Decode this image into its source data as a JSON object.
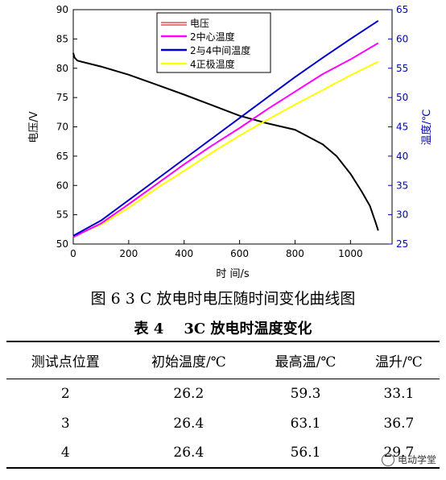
{
  "chart_data": {
    "type": "line",
    "xlabel": "时 间/s",
    "ylabel_left": "电压/V",
    "ylabel_right": "温度/℃",
    "xlim": [
      0,
      1150
    ],
    "ylim_left": [
      50,
      90
    ],
    "ylim_right": [
      25,
      65
    ],
    "xticks": [
      0,
      200,
      400,
      600,
      800,
      1000
    ],
    "yticks_left": [
      50,
      55,
      60,
      65,
      70,
      75,
      80,
      85,
      90
    ],
    "yticks_right": [
      25,
      30,
      35,
      40,
      45,
      50,
      55,
      60,
      65
    ],
    "grid": false,
    "legend_position": "top-center",
    "series": [
      {
        "name": "电压",
        "axis": "left",
        "color": "#000000",
        "legend_color": "#cc0000",
        "x": [
          0,
          5,
          15,
          40,
          100,
          200,
          300,
          400,
          500,
          600,
          700,
          800,
          900,
          950,
          1000,
          1040,
          1070,
          1090,
          1100
        ],
        "y": [
          82.6,
          81.8,
          81.3,
          81.0,
          80.3,
          78.9,
          77.2,
          75.5,
          73.7,
          71.9,
          70.6,
          69.5,
          67.0,
          65.0,
          62.0,
          59.0,
          56.5,
          53.8,
          52.3
        ]
      },
      {
        "name": "2中心温度",
        "axis": "right",
        "color": "#ff00ff",
        "x": [
          0,
          100,
          200,
          300,
          400,
          500,
          600,
          700,
          800,
          900,
          1000,
          1100
        ],
        "y": [
          26.2,
          28.5,
          31.8,
          35.2,
          38.6,
          41.8,
          44.8,
          48.0,
          51.0,
          54.0,
          56.5,
          59.3
        ]
      },
      {
        "name": "2与4中间温度",
        "axis": "right",
        "color": "#0000cc",
        "x": [
          0,
          100,
          200,
          300,
          400,
          500,
          600,
          700,
          800,
          900,
          1000,
          1100
        ],
        "y": [
          26.4,
          29.0,
          32.5,
          36.0,
          39.5,
          43.0,
          46.5,
          50.0,
          53.5,
          56.8,
          60.0,
          63.1
        ]
      },
      {
        "name": "4正极温度",
        "axis": "right",
        "color": "#ffff00",
        "x": [
          0,
          100,
          200,
          300,
          400,
          500,
          600,
          700,
          800,
          900,
          1000,
          1100
        ],
        "y": [
          26.4,
          28.3,
          31.2,
          34.5,
          37.5,
          40.6,
          43.5,
          46.2,
          48.8,
          51.3,
          53.8,
          56.1
        ]
      }
    ]
  },
  "figure_caption": "图 6 3 C 放电时电压随时间变化曲线图",
  "table": {
    "caption": "表 4    3C 放电时温度变化",
    "headers": [
      "测试点位置",
      "初始温度/℃",
      "最高温/℃",
      "温升/℃"
    ],
    "rows": [
      [
        "2",
        "26.2",
        "59.3",
        "33.1"
      ],
      [
        "3",
        "26.4",
        "63.1",
        "36.7"
      ],
      [
        "4",
        "26.4",
        "56.1",
        "29.7"
      ]
    ]
  },
  "watermark": {
    "text": "电动学堂",
    "icon": "wechat-icon"
  }
}
